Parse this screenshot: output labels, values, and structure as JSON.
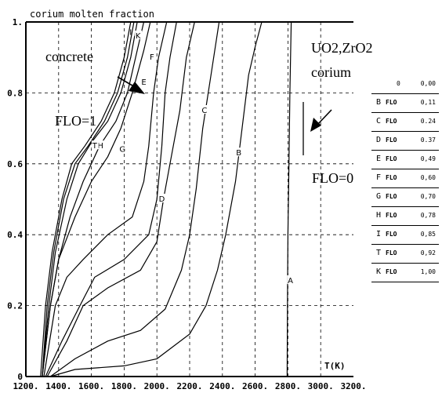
{
  "chart_data": {
    "type": "line",
    "title": "corium molten fraction",
    "xlabel": "T(K)",
    "ylabel": "",
    "xlim": [
      1200,
      3200
    ],
    "ylim": [
      0,
      1
    ],
    "x_ticks": [
      "1200.",
      "1400.",
      "1600.",
      "1800.",
      "2000.",
      "2200.",
      "2400.",
      "2600.",
      "2800.",
      "3000.",
      "3200."
    ],
    "y_ticks": [
      "0",
      "0.2",
      "0.4",
      "0.6",
      "0.8",
      "1."
    ],
    "grid": true,
    "annotations": {
      "concrete": "concrete",
      "flo1": "FLO=1",
      "corium_line1": "UO2,ZrO2",
      "corium_line2": "corium",
      "flo0": "FLO=0"
    },
    "series": [
      {
        "name": "A",
        "label_at": [
          2815,
          0.27
        ],
        "values": [
          [
            2795,
            0
          ],
          [
            2797,
            0.2
          ],
          [
            2800,
            0.4
          ],
          [
            2806,
            0.6
          ],
          [
            2812,
            0.8
          ],
          [
            2820,
            1.0
          ]
        ]
      },
      {
        "name": "B",
        "label_at": [
          2500,
          0.63
        ],
        "values": [
          [
            1350,
            0
          ],
          [
            1500,
            0.02
          ],
          [
            1800,
            0.03
          ],
          [
            2000,
            0.05
          ],
          [
            2200,
            0.12
          ],
          [
            2300,
            0.2
          ],
          [
            2370,
            0.3
          ],
          [
            2420,
            0.4
          ],
          [
            2480,
            0.55
          ],
          [
            2520,
            0.7
          ],
          [
            2560,
            0.85
          ],
          [
            2600,
            0.93
          ],
          [
            2640,
            1.0
          ]
        ]
      },
      {
        "name": "C",
        "label_at": [
          2290,
          0.75
        ],
        "values": [
          [
            1350,
            0
          ],
          [
            1500,
            0.05
          ],
          [
            1700,
            0.1
          ],
          [
            1900,
            0.13
          ],
          [
            2050,
            0.19
          ],
          [
            2150,
            0.3
          ],
          [
            2200,
            0.4
          ],
          [
            2240,
            0.53
          ],
          [
            2280,
            0.7
          ],
          [
            2330,
            0.85
          ],
          [
            2380,
            1.0
          ]
        ]
      },
      {
        "name": "D",
        "label_at": [
          2030,
          0.5
        ],
        "values": [
          [
            1330,
            0
          ],
          [
            1450,
            0.1
          ],
          [
            1550,
            0.2
          ],
          [
            1700,
            0.25
          ],
          [
            1900,
            0.3
          ],
          [
            2000,
            0.38
          ],
          [
            2040,
            0.5
          ],
          [
            2080,
            0.6
          ],
          [
            2140,
            0.75
          ],
          [
            2180,
            0.9
          ],
          [
            2230,
            1.0
          ]
        ]
      },
      {
        "name": "E",
        "label_at": [
          1920,
          0.83
        ],
        "values": [
          [
            1320,
            0
          ],
          [
            1420,
            0.1
          ],
          [
            1530,
            0.2
          ],
          [
            1620,
            0.28
          ],
          [
            1800,
            0.33
          ],
          [
            1950,
            0.4
          ],
          [
            2000,
            0.5
          ],
          [
            2030,
            0.65
          ],
          [
            2050,
            0.8
          ],
          [
            2080,
            0.9
          ],
          [
            2120,
            1.0
          ]
        ]
      },
      {
        "name": "F",
        "label_at": [
          1970,
          0.9
        ],
        "values": [
          [
            1310,
            0
          ],
          [
            1380,
            0.2
          ],
          [
            1450,
            0.28
          ],
          [
            1550,
            0.33
          ],
          [
            1700,
            0.4
          ],
          [
            1850,
            0.45
          ],
          [
            1920,
            0.55
          ],
          [
            1950,
            0.65
          ],
          [
            1980,
            0.8
          ],
          [
            2010,
            0.9
          ],
          [
            2060,
            1.0
          ]
        ]
      },
      {
        "name": "G",
        "label_at": [
          1790,
          0.64
        ],
        "values": [
          [
            1300,
            0
          ],
          [
            1350,
            0.2
          ],
          [
            1400,
            0.33
          ],
          [
            1500,
            0.45
          ],
          [
            1600,
            0.55
          ],
          [
            1700,
            0.62
          ],
          [
            1780,
            0.7
          ],
          [
            1850,
            0.8
          ],
          [
            1920,
            0.92
          ],
          [
            1960,
            1.0
          ]
        ]
      },
      {
        "name": "H",
        "label_at": [
          1655,
          0.65
        ],
        "values": [
          [
            1300,
            0
          ],
          [
            1350,
            0.2
          ],
          [
            1400,
            0.33
          ],
          [
            1470,
            0.45
          ],
          [
            1550,
            0.55
          ],
          [
            1650,
            0.65
          ],
          [
            1750,
            0.72
          ],
          [
            1820,
            0.8
          ],
          [
            1880,
            0.92
          ],
          [
            1920,
            1.0
          ]
        ]
      },
      {
        "name": "I",
        "label_at": [
          1840,
          0.97
        ],
        "values": [
          [
            1300,
            0
          ],
          [
            1340,
            0.2
          ],
          [
            1380,
            0.35
          ],
          [
            1450,
            0.5
          ],
          [
            1520,
            0.6
          ],
          [
            1600,
            0.66
          ],
          [
            1700,
            0.72
          ],
          [
            1780,
            0.8
          ],
          [
            1840,
            0.9
          ],
          [
            1880,
            1.0
          ]
        ]
      },
      {
        "name": "T",
        "label_at": [
          1620,
          0.65
        ],
        "values": [
          [
            1300,
            0
          ],
          [
            1330,
            0.2
          ],
          [
            1370,
            0.35
          ],
          [
            1430,
            0.5
          ],
          [
            1500,
            0.6
          ],
          [
            1580,
            0.65
          ],
          [
            1680,
            0.72
          ],
          [
            1760,
            0.8
          ],
          [
            1820,
            0.9
          ],
          [
            1860,
            1.0
          ]
        ]
      },
      {
        "name": "K",
        "label_at": [
          1885,
          0.96
        ],
        "values": [
          [
            1290,
            0
          ],
          [
            1320,
            0.2
          ],
          [
            1360,
            0.35
          ],
          [
            1420,
            0.5
          ],
          [
            1480,
            0.6
          ],
          [
            1560,
            0.65
          ],
          [
            1660,
            0.72
          ],
          [
            1740,
            0.8
          ],
          [
            1800,
            0.9
          ],
          [
            1840,
            1.0
          ]
        ]
      }
    ],
    "legend": {
      "header": {
        "label": "0",
        "value": "0,00"
      },
      "flo_label": "FLO",
      "entries": [
        {
          "label": "B",
          "value": "0,11"
        },
        {
          "label": "C",
          "value": "0.24"
        },
        {
          "label": "D",
          "value": "0.37"
        },
        {
          "label": "E",
          "value": "0,49"
        },
        {
          "label": "F",
          "value": "0,60"
        },
        {
          "label": "G",
          "value": "0,70"
        },
        {
          "label": "H",
          "value": "0,78"
        },
        {
          "label": "I",
          "value": "0,85"
        },
        {
          "label": "T",
          "value": "0,92"
        },
        {
          "label": "K",
          "value": "1,00"
        }
      ]
    }
  }
}
